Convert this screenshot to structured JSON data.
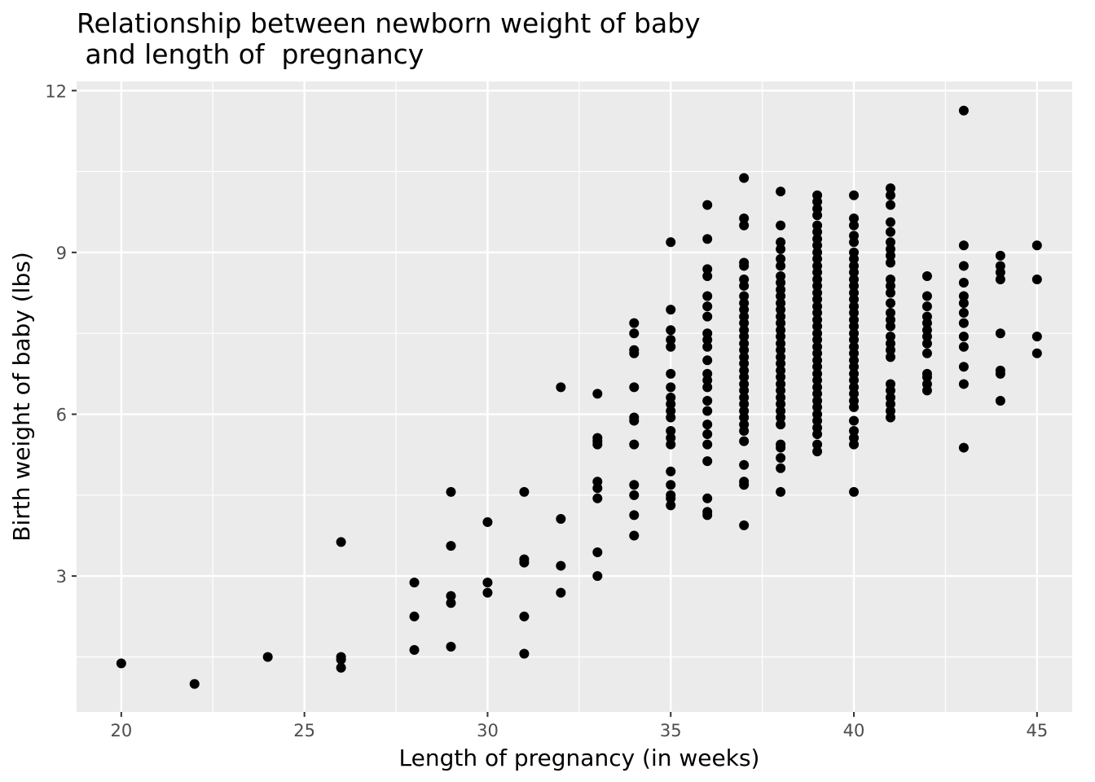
{
  "chart_data": {
    "type": "scatter",
    "title": "Relationship between newborn weight of baby\n and length of  pregnancy",
    "x_label": "Length of pregnancy (in weeks)",
    "y_label": "Birth weight of baby (lbs)",
    "color": "#000000",
    "grid": true,
    "xlim": [
      18.78,
      45.96
    ],
    "xticks": [
      20,
      25,
      30,
      35,
      40,
      45
    ],
    "xminor": [
      22.5,
      27.5,
      32.5,
      37.5,
      42.5
    ],
    "ylim": [
      0.48,
      12.17
    ],
    "yticks": [
      3,
      6,
      9,
      12
    ],
    "yminor": [
      1.5,
      4.5,
      7.5,
      10.5
    ],
    "x": [
      20,
      22,
      24,
      26,
      26,
      26,
      26,
      28,
      28,
      28,
      29,
      29,
      29,
      29,
      29,
      30,
      30,
      30,
      31,
      31,
      31,
      31,
      31,
      32,
      32,
      32,
      32,
      33,
      33,
      33,
      33,
      33,
      33,
      33,
      33,
      33,
      34,
      34,
      34,
      34,
      34,
      34,
      34,
      34,
      34,
      34,
      34,
      34,
      35,
      35,
      35,
      35,
      35,
      35,
      35,
      35,
      35,
      35,
      35,
      35,
      35,
      35,
      35,
      35,
      35,
      35,
      35,
      36,
      36,
      36,
      36,
      36,
      36,
      36,
      36,
      36,
      36,
      36,
      36,
      36,
      36,
      36,
      36,
      36,
      36,
      36,
      36,
      36,
      36,
      36,
      37,
      37,
      37,
      37,
      37,
      37,
      37,
      37,
      37,
      37,
      37,
      37,
      37,
      37,
      37,
      37,
      37,
      37,
      37,
      37,
      37,
      37,
      37,
      37,
      37,
      37,
      37,
      37,
      37,
      37,
      37,
      37,
      37,
      38,
      38,
      38,
      38,
      38,
      38,
      38,
      38,
      38,
      38,
      38,
      38,
      38,
      38,
      38,
      38,
      38,
      38,
      38,
      38,
      38,
      38,
      38,
      38,
      38,
      38,
      38,
      38,
      38,
      38,
      38,
      38,
      38,
      38,
      39,
      39,
      39,
      39,
      39,
      39,
      39,
      39,
      39,
      39,
      39,
      39,
      39,
      39,
      39,
      39,
      39,
      39,
      39,
      39,
      39,
      39,
      39,
      39,
      39,
      39,
      39,
      39,
      39,
      39,
      39,
      39,
      39,
      39,
      39,
      39,
      39,
      39,
      40,
      40,
      40,
      40,
      40,
      40,
      40,
      40,
      40,
      40,
      40,
      40,
      40,
      40,
      40,
      40,
      40,
      40,
      40,
      40,
      40,
      40,
      40,
      40,
      40,
      40,
      40,
      40,
      40,
      40,
      40,
      40,
      40,
      40,
      41,
      41,
      41,
      41,
      41,
      41,
      41,
      41,
      41,
      41,
      41,
      41,
      41,
      41,
      41,
      41,
      41,
      41,
      41,
      41,
      41,
      41,
      41,
      41,
      41,
      41,
      42,
      42,
      42,
      42,
      42,
      42,
      42,
      42,
      42,
      42,
      42,
      42,
      42,
      43,
      43,
      43,
      43,
      43,
      43,
      43,
      43,
      43,
      43,
      43,
      43,
      43,
      44,
      44,
      44,
      44,
      44,
      44,
      44,
      44,
      45,
      45,
      45,
      45
    ],
    "y": [
      1.38,
      1.0,
      1.5,
      3.63,
      1.5,
      1.45,
      1.3,
      2.88,
      2.25,
      1.63,
      4.56,
      3.56,
      2.63,
      2.5,
      1.69,
      4.0,
      2.88,
      2.69,
      4.56,
      3.31,
      3.25,
      2.25,
      1.56,
      6.5,
      4.06,
      3.19,
      2.69,
      6.38,
      5.56,
      5.5,
      5.44,
      4.75,
      4.63,
      4.44,
      3.44,
      3.0,
      7.69,
      7.5,
      7.19,
      7.13,
      6.5,
      5.94,
      5.88,
      5.44,
      4.69,
      4.5,
      4.13,
      3.75,
      9.19,
      7.94,
      7.56,
      7.38,
      7.25,
      6.75,
      6.5,
      6.31,
      6.19,
      6.06,
      5.94,
      5.69,
      5.56,
      5.44,
      4.94,
      4.69,
      4.5,
      4.44,
      4.31,
      9.88,
      9.25,
      8.69,
      8.56,
      8.19,
      8.0,
      7.81,
      7.5,
      7.38,
      7.25,
      7.0,
      6.75,
      6.63,
      6.5,
      6.25,
      6.06,
      5.81,
      5.63,
      5.44,
      5.13,
      4.44,
      4.19,
      4.13,
      10.38,
      9.63,
      9.5,
      8.81,
      8.75,
      8.5,
      8.38,
      8.19,
      8.06,
      7.94,
      7.81,
      7.69,
      7.56,
      7.44,
      7.31,
      7.19,
      7.06,
      6.94,
      6.81,
      6.69,
      6.56,
      6.44,
      6.31,
      6.19,
      6.06,
      5.94,
      5.81,
      5.69,
      5.5,
      5.06,
      4.75,
      4.69,
      3.94,
      10.13,
      9.5,
      9.19,
      9.06,
      8.88,
      8.75,
      8.56,
      8.44,
      8.31,
      8.19,
      8.06,
      7.94,
      7.81,
      7.69,
      7.56,
      7.44,
      7.31,
      7.19,
      7.06,
      6.94,
      6.81,
      6.69,
      6.56,
      6.44,
      6.31,
      6.19,
      6.06,
      5.94,
      5.81,
      5.44,
      5.38,
      5.19,
      5.0,
      4.56,
      10.06,
      9.94,
      9.81,
      9.69,
      9.5,
      9.38,
      9.25,
      9.13,
      9.0,
      8.88,
      8.75,
      8.63,
      8.5,
      8.38,
      8.25,
      8.13,
      8.0,
      7.88,
      7.75,
      7.63,
      7.5,
      7.38,
      7.25,
      7.13,
      7.0,
      6.88,
      6.75,
      6.63,
      6.5,
      6.38,
      6.25,
      6.13,
      6.0,
      5.88,
      5.75,
      5.63,
      5.44,
      5.31,
      10.06,
      9.63,
      9.5,
      9.31,
      9.19,
      9.0,
      8.88,
      8.75,
      8.63,
      8.5,
      8.38,
      8.25,
      8.13,
      8.0,
      7.88,
      7.75,
      7.63,
      7.5,
      7.38,
      7.25,
      7.13,
      7.0,
      6.88,
      6.75,
      6.63,
      6.5,
      6.38,
      6.25,
      6.13,
      5.88,
      5.69,
      5.56,
      5.44,
      4.56,
      10.19,
      10.06,
      9.88,
      9.56,
      9.38,
      9.19,
      9.06,
      8.94,
      8.81,
      8.5,
      8.38,
      8.25,
      8.06,
      7.88,
      7.75,
      7.63,
      7.44,
      7.31,
      7.19,
      7.06,
      6.56,
      6.44,
      6.31,
      6.19,
      6.06,
      5.94,
      8.56,
      8.19,
      8.0,
      7.81,
      7.69,
      7.56,
      7.44,
      7.31,
      7.13,
      6.75,
      6.69,
      6.56,
      6.44,
      11.63,
      9.13,
      8.75,
      8.44,
      8.19,
      8.06,
      7.88,
      7.69,
      7.44,
      7.25,
      6.88,
      6.56,
      5.38,
      8.94,
      8.75,
      8.63,
      8.5,
      7.5,
      6.81,
      6.75,
      6.25,
      9.13,
      8.5,
      7.44,
      7.13
    ]
  }
}
